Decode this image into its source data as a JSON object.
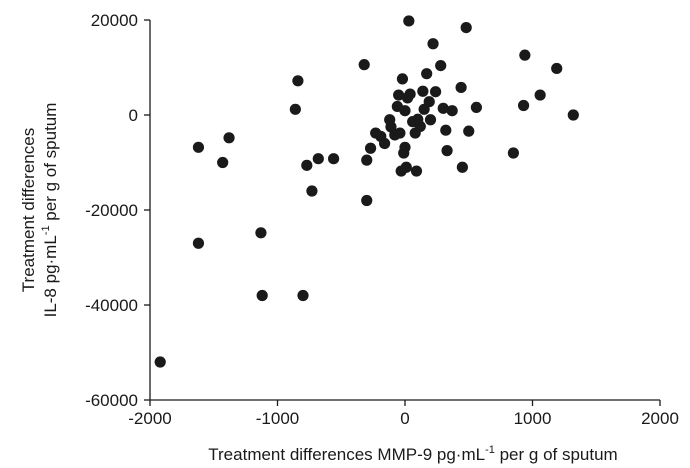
{
  "chart_data": {
    "type": "scatter",
    "title": "",
    "xlabel": {
      "prefix": "Treatment differences MMP-9 pg·mL",
      "superscript": "-1",
      "suffix": " per g of sputum"
    },
    "ylabel": {
      "line1": "Treatment differences",
      "line2_prefix": "IL-8 pg·mL",
      "line2_superscript": "-1",
      "line2_suffix": " per g of sputum"
    },
    "xlim": [
      -2000,
      2000
    ],
    "ylim": [
      -60000,
      20000
    ],
    "xticks": [
      -2000,
      -1000,
      0,
      1000,
      2000
    ],
    "yticks": [
      20000,
      0,
      -20000,
      -40000,
      -60000
    ],
    "xtick_labels": [
      "-2000",
      "-1000",
      "0",
      "1000",
      "2000"
    ],
    "ytick_labels": [
      "20000",
      "0",
      "-20000",
      "-40000",
      "-60000"
    ],
    "grid": false,
    "legend": "none",
    "marker_color": "#1a1a1a",
    "points": [
      [
        -1920,
        -52000
      ],
      [
        -1620,
        -6800
      ],
      [
        -1620,
        -27000
      ],
      [
        -1430,
        -10000
      ],
      [
        -1380,
        -4800
      ],
      [
        -1130,
        -24800
      ],
      [
        -1120,
        -38000
      ],
      [
        -860,
        1200
      ],
      [
        -840,
        7200
      ],
      [
        -800,
        -38000
      ],
      [
        -770,
        -10600
      ],
      [
        -730,
        -16000
      ],
      [
        -680,
        -9200
      ],
      [
        -560,
        -9200
      ],
      [
        -320,
        10600
      ],
      [
        -300,
        -9500
      ],
      [
        -300,
        -18000
      ],
      [
        -270,
        -7000
      ],
      [
        -230,
        -3800
      ],
      [
        -190,
        -4500
      ],
      [
        -160,
        -6000
      ],
      [
        -120,
        -1000
      ],
      [
        -110,
        -2500
      ],
      [
        -80,
        -4200
      ],
      [
        -60,
        1800
      ],
      [
        -50,
        4200
      ],
      [
        -40,
        -3800
      ],
      [
        -30,
        -11800
      ],
      [
        -20,
        7600
      ],
      [
        -10,
        -8000
      ],
      [
        0,
        -6800
      ],
      [
        0,
        900
      ],
      [
        10,
        -11000
      ],
      [
        20,
        3600
      ],
      [
        30,
        19800
      ],
      [
        40,
        4400
      ],
      [
        60,
        -1400
      ],
      [
        80,
        -3800
      ],
      [
        90,
        -11800
      ],
      [
        100,
        -900
      ],
      [
        120,
        -2400
      ],
      [
        140,
        5000
      ],
      [
        150,
        1200
      ],
      [
        170,
        8700
      ],
      [
        190,
        2800
      ],
      [
        200,
        -1000
      ],
      [
        220,
        15000
      ],
      [
        240,
        4900
      ],
      [
        280,
        10400
      ],
      [
        300,
        1400
      ],
      [
        320,
        -3200
      ],
      [
        330,
        -7500
      ],
      [
        370,
        900
      ],
      [
        440,
        5800
      ],
      [
        450,
        -11000
      ],
      [
        480,
        18400
      ],
      [
        500,
        -3400
      ],
      [
        560,
        1600
      ],
      [
        850,
        -8000
      ],
      [
        930,
        2000
      ],
      [
        940,
        12600
      ],
      [
        1060,
        4200
      ],
      [
        1190,
        9800
      ],
      [
        1320,
        0
      ]
    ]
  }
}
